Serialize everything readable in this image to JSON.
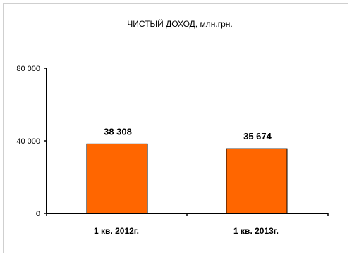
{
  "chart_data": {
    "type": "bar",
    "title": "ЧИСТЫЙ ДОХОД, млн.грн.",
    "categories": [
      "1 кв. 2012г.",
      "1 кв. 2013г."
    ],
    "values": [
      38308,
      35674
    ],
    "value_labels": [
      "38 308",
      "35 674"
    ],
    "ylim": [
      0,
      80000
    ],
    "yticks": [
      0,
      40000,
      80000
    ],
    "ytick_labels": [
      "0",
      "40 000",
      "80 000"
    ],
    "grid": false,
    "legend": "none",
    "bar_color": "#FF6600",
    "bar_border_color": "#000000"
  }
}
